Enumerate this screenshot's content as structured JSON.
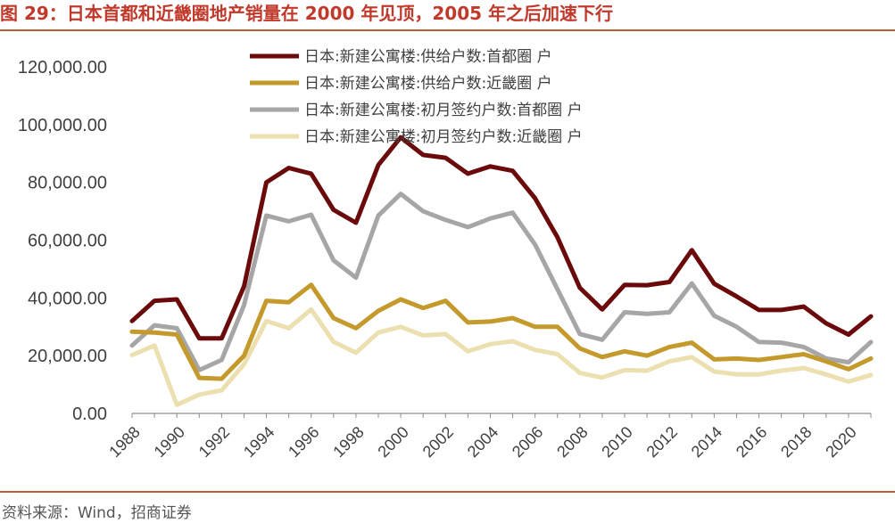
{
  "figure": {
    "title": "图 29：日本首都和近畿圈地产销量在 2000 年见顶，2005 年之后加速下行",
    "source": "资料来源：Wind，招商证券"
  },
  "chart_data": {
    "type": "line",
    "x": [
      1988,
      1989,
      1990,
      1991,
      1992,
      1993,
      1994,
      1995,
      1996,
      1997,
      1998,
      1999,
      2000,
      2001,
      2002,
      2003,
      2004,
      2005,
      2006,
      2007,
      2008,
      2009,
      2010,
      2011,
      2012,
      2013,
      2014,
      2015,
      2016,
      2017,
      2018,
      2019,
      2020,
      2021
    ],
    "x_tick_labels": [
      "1988",
      "1990",
      "1992",
      "1994",
      "1996",
      "1998",
      "2000",
      "2002",
      "2004",
      "2006",
      "2008",
      "2010",
      "2012",
      "2014",
      "2016",
      "2018",
      "2020"
    ],
    "ylim": [
      0,
      120000
    ],
    "y_ticks": [
      0,
      20000,
      40000,
      60000,
      80000,
      100000,
      120000
    ],
    "y_tick_labels": [
      "0.00",
      "20,000.00",
      "40,000.00",
      "60,000.00",
      "80,000.00",
      "100,000.00",
      "120,000.00"
    ],
    "grid": false,
    "legend_position": "top-center",
    "series": [
      {
        "name": "日本:新建公寓楼:供给户数:首都圈 户",
        "color": "#6b0a0a",
        "values": [
          32000,
          39000,
          39500,
          26000,
          26000,
          44000,
          80000,
          85000,
          83000,
          70500,
          66000,
          86000,
          95600,
          89500,
          88500,
          83000,
          85500,
          84000,
          74500,
          61000,
          43500,
          36000,
          44500,
          44400,
          45500,
          56500,
          44900,
          40500,
          35800,
          35800,
          37000,
          31200,
          27300,
          33600
        ]
      },
      {
        "name": "日本:新建公寓楼:供给户数:近畿圈 户",
        "color": "#c49a2c",
        "values": [
          28300,
          28000,
          27300,
          12300,
          12000,
          20000,
          39000,
          38500,
          44500,
          33000,
          29500,
          35500,
          39500,
          36500,
          39000,
          31500,
          31800,
          33000,
          30000,
          30000,
          22500,
          19500,
          21500,
          20000,
          23000,
          24500,
          18700,
          19000,
          18500,
          19500,
          20500,
          18000,
          15300,
          19000
        ]
      },
      {
        "name": "日本:新建公寓楼:初月签约户数:首都圈 户",
        "color": "#a6a6a6",
        "values": [
          23500,
          30500,
          29500,
          15000,
          18500,
          37500,
          68500,
          66500,
          68800,
          53000,
          47000,
          68500,
          76000,
          70000,
          67000,
          64500,
          67500,
          69500,
          58500,
          43000,
          27500,
          25500,
          35000,
          34500,
          35000,
          45000,
          33800,
          30000,
          24700,
          24500,
          23000,
          19000,
          17700,
          24700
        ]
      },
      {
        "name": "日本:新建公寓楼:初月签约户数:近畿圈 户",
        "color": "#ecdfb0",
        "values": [
          20200,
          23500,
          3000,
          6500,
          8000,
          17000,
          32000,
          29500,
          36000,
          24800,
          21000,
          28000,
          30000,
          27000,
          27500,
          21500,
          24000,
          25000,
          22000,
          20500,
          14000,
          12400,
          15000,
          14800,
          18000,
          19500,
          14500,
          13500,
          13500,
          14800,
          15700,
          13500,
          11000,
          13300
        ]
      }
    ]
  }
}
